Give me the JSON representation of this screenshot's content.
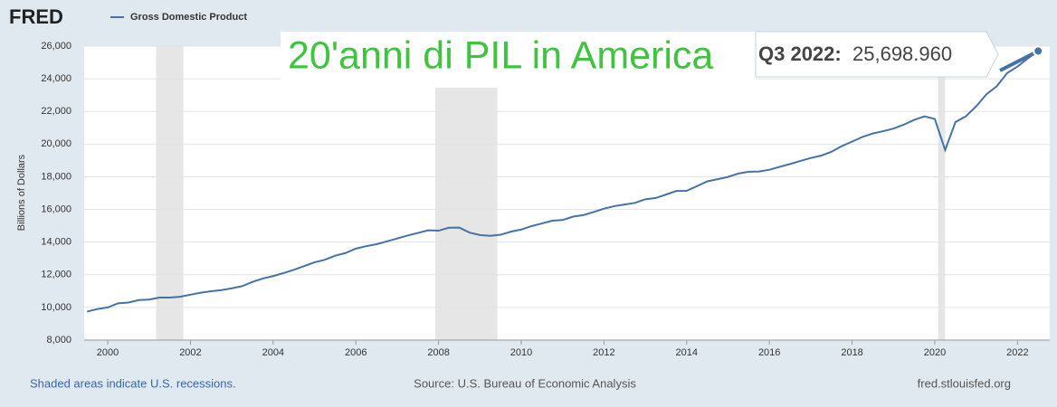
{
  "chart_data": {
    "type": "line",
    "logo": "FRED",
    "title": "20'anni di PIL in America",
    "y_label": "Billions of Dollars",
    "annotation_label": "Q3 2022:",
    "footer_left": "Shaded areas indicate U.S. recessions.",
    "footer_center": "Source: U.S. Bureau of Economic Analysis",
    "footer_right": "fred.stlouisfed.org",
    "x": [
      1999.5,
      1999.75,
      2000,
      2000.25,
      2000.5,
      2000.75,
      2001,
      2001.25,
      2001.5,
      2001.75,
      2002,
      2002.25,
      2002.5,
      2002.75,
      2003,
      2003.25,
      2003.5,
      2003.75,
      2004,
      2004.25,
      2004.5,
      2004.75,
      2005,
      2005.25,
      2005.5,
      2005.75,
      2006,
      2006.25,
      2006.5,
      2006.75,
      2007,
      2007.25,
      2007.5,
      2007.75,
      2008,
      2008.25,
      2008.5,
      2008.75,
      2009,
      2009.25,
      2009.5,
      2009.75,
      2010,
      2010.25,
      2010.5,
      2010.75,
      2011,
      2011.25,
      2011.5,
      2011.75,
      2012,
      2012.25,
      2012.5,
      2012.75,
      2013,
      2013.25,
      2013.5,
      2013.75,
      2014,
      2014.25,
      2014.5,
      2014.75,
      2015,
      2015.25,
      2015.5,
      2015.75,
      2016,
      2016.25,
      2016.5,
      2016.75,
      2017,
      2017.25,
      2017.5,
      2017.75,
      2018,
      2018.25,
      2018.5,
      2018.75,
      2019,
      2019.25,
      2019.5,
      2019.75,
      2020,
      2020.25,
      2020.5,
      2020.75,
      2021,
      2021.25,
      2021.5,
      2021.75,
      2022,
      2022.25,
      2022.5
    ],
    "series": [
      {
        "name": "Gross Domestic Product",
        "color": "#4572a7",
        "values": [
          9740,
          9900,
          10000,
          10250,
          10300,
          10450,
          10480,
          10600,
          10600,
          10650,
          10780,
          10900,
          10990,
          11060,
          11170,
          11300,
          11560,
          11770,
          11920,
          12100,
          12300,
          12530,
          12760,
          12920,
          13170,
          13330,
          13600,
          13750,
          13870,
          14040,
          14220,
          14400,
          14560,
          14720,
          14700,
          14880,
          14890,
          14580,
          14430,
          14380,
          14450,
          14640,
          14770,
          14980,
          15140,
          15310,
          15350,
          15560,
          15650,
          15840,
          16050,
          16200,
          16300,
          16400,
          16620,
          16700,
          16910,
          17130,
          17140,
          17430,
          17720,
          17850,
          17990,
          18200,
          18310,
          18320,
          18430,
          18610,
          18780,
          18970,
          19150,
          19290,
          19530,
          19880,
          20150,
          20440,
          20650,
          20790,
          20950,
          21190,
          21480,
          21700,
          21540,
          19640,
          21350,
          21700,
          22310,
          23050,
          23550,
          24350,
          24750,
          25250,
          25698.96
        ],
        "value_labels": [
          null,
          null,
          null,
          null,
          null,
          null,
          null,
          null,
          null,
          null,
          null,
          null,
          null,
          null,
          null,
          null,
          null,
          null,
          null,
          null,
          null,
          null,
          null,
          null,
          null,
          null,
          null,
          null,
          null,
          null,
          null,
          null,
          null,
          null,
          null,
          null,
          null,
          null,
          null,
          null,
          null,
          null,
          null,
          null,
          null,
          null,
          null,
          null,
          null,
          null,
          null,
          null,
          null,
          null,
          null,
          null,
          null,
          null,
          null,
          null,
          null,
          null,
          null,
          null,
          null,
          null,
          null,
          null,
          null,
          null,
          null,
          null,
          null,
          null,
          null,
          null,
          null,
          null,
          null,
          null,
          null,
          null,
          null,
          null,
          null,
          null,
          null,
          null,
          null,
          null,
          null,
          null,
          "25,698.960"
        ]
      }
    ],
    "recessions": [
      [
        2001.17,
        2001.83
      ],
      [
        2007.92,
        2009.42
      ],
      [
        2020.08,
        2020.25
      ]
    ],
    "xlim": [
      1999.43,
      2022.78
    ],
    "xticks": [
      2000,
      2002,
      2004,
      2006,
      2008,
      2010,
      2012,
      2014,
      2016,
      2018,
      2020,
      2022
    ],
    "ylim": [
      8000,
      26000
    ],
    "yticks": [
      {
        "value": 8000,
        "label": "8,000"
      },
      {
        "value": 10000,
        "label": "10,000"
      },
      {
        "value": 12000,
        "label": "12,000"
      },
      {
        "value": 14000,
        "label": "14,000"
      },
      {
        "value": 16000,
        "label": "16,000"
      },
      {
        "value": 18000,
        "label": "18,000"
      },
      {
        "value": 20000,
        "label": "20,000"
      },
      {
        "value": 22000,
        "label": "22,000"
      },
      {
        "value": 24000,
        "label": "24,000"
      },
      {
        "value": 26000,
        "label": "26,000"
      }
    ],
    "grid": true
  }
}
